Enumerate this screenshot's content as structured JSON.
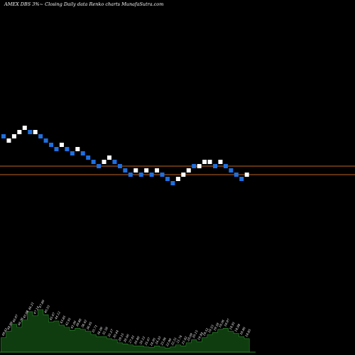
{
  "title": "AMEX  DBS 3%~  Closing Daily data  Renko  charts MunafaSutra.com",
  "colors": {
    "background": "#000000",
    "up_brick": "#ffffff",
    "down_brick": "#1e6fe0",
    "reference_line": "#c0631f",
    "volume_fill": "#0f3d0f",
    "volume_edge": "#2e8b2e",
    "label_text": "#ffffff"
  },
  "chart_data": {
    "type": "renko",
    "brick_direction": [
      "down",
      "up",
      "up",
      "up",
      "up",
      "down",
      "up",
      "down",
      "down",
      "down",
      "down",
      "up",
      "down",
      "down",
      "up",
      "down",
      "down",
      "down",
      "down",
      "up",
      "up",
      "down",
      "down",
      "down",
      "down",
      "up",
      "down",
      "up",
      "down",
      "up",
      "down",
      "down",
      "down",
      "up",
      "up",
      "up",
      "down",
      "up",
      "up",
      "up",
      "down",
      "up",
      "down",
      "down",
      "down",
      "down",
      "up"
    ],
    "brick_level": [
      9,
      8,
      9,
      10,
      11,
      10,
      10,
      9,
      8,
      7,
      6,
      7,
      6,
      5,
      6,
      5,
      4,
      3,
      2,
      3,
      4,
      3,
      2,
      1,
      0,
      1,
      0,
      1,
      0,
      1,
      0,
      -1,
      -2,
      -1,
      0,
      1,
      2,
      2,
      3,
      3,
      2,
      3,
      2,
      1,
      0,
      -1,
      0
    ],
    "reference_lines": 2,
    "volume_labels": [
      "49.62",
      "48.89",
      "46.97",
      "46.36",
      "45.98",
      "46.21",
      "47.14",
      "47.89",
      "46.55",
      "45.67",
      "44.12",
      "43.85",
      "42.91",
      "41.06",
      "39.88",
      "38.42",
      "36.95",
      "35.71",
      "34.09",
      "32.58",
      "31.27",
      "30.44",
      "29.15",
      "28.06",
      "27.41",
      "26.88",
      "26.12",
      "25.67",
      "24.95",
      "24.33",
      "23.86",
      "22.98",
      "22.51",
      "21.74",
      "21.02",
      "20.69",
      "20.15",
      "19.84",
      "19.52",
      "19.33",
      "19.18",
      "19.06",
      "18.97",
      "18.91",
      "18.88",
      "18.86",
      "18.85"
    ],
    "volume_values": [
      28,
      40,
      54,
      48,
      62,
      78,
      70,
      82,
      72,
      58,
      60,
      52,
      48,
      42,
      46,
      44,
      40,
      34,
      30,
      30,
      26,
      24,
      18,
      16,
      14,
      12,
      12,
      10,
      9,
      12,
      10,
      8,
      10,
      14,
      12,
      18,
      24,
      20,
      28,
      34,
      38,
      44,
      46,
      40,
      36,
      30,
      26
    ]
  }
}
